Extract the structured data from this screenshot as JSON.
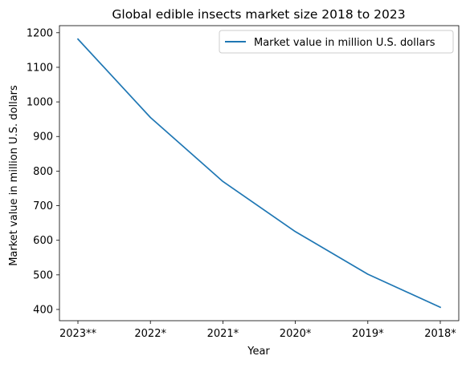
{
  "chart_data": {
    "type": "line",
    "title": "Global edible insects market size 2018 to 2023",
    "xlabel": "Year",
    "ylabel": "Market value in million U.S. dollars",
    "categories": [
      "2023**",
      "2022*",
      "2021*",
      "2020*",
      "2019*",
      "2018*"
    ],
    "series": [
      {
        "name": "Market value in million U.S. dollars",
        "values": [
          1181.6,
          955,
          770,
          625,
          502,
          406.3
        ],
        "color": "#1f77b4"
      }
    ],
    "yticks": [
      400,
      500,
      600,
      700,
      800,
      900,
      1000,
      1100,
      1200
    ],
    "ylim": [
      367.5,
      1220.4
    ],
    "grid": false,
    "legend_position": "upper right"
  }
}
